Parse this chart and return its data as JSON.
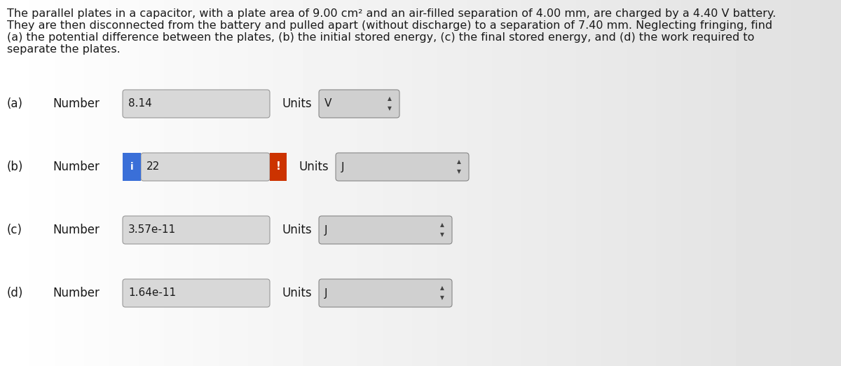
{
  "background_color": "#e8e8e8",
  "title_text_lines": [
    "The parallel plates in a capacitor, with a plate area of 9.00 cm² and an air-filled separation of 4.00 mm, are charged by a 4.40 V battery.",
    "They are then disconnected from the battery and pulled apart (without discharge) to a separation of 7.40 mm. Neglecting fringing, find",
    "(a) the potential difference between the plates, (b) the initial stored energy, (c) the final stored energy, and (d) the work required to",
    "separate the plates."
  ],
  "rows": [
    {
      "label": "(a)",
      "number_value": "8.14",
      "units_value": "V",
      "has_info": false,
      "has_error": false,
      "units_wide": false
    },
    {
      "label": "(b)",
      "number_value": "22",
      "units_value": "J",
      "has_info": true,
      "has_error": true,
      "units_wide": true
    },
    {
      "label": "(c)",
      "number_value": "3.57e-11",
      "units_value": "J",
      "has_info": false,
      "has_error": false,
      "units_wide": true
    },
    {
      "label": "(d)",
      "number_value": "1.64e-11",
      "units_value": "J",
      "has_info": false,
      "has_error": false,
      "units_wide": true
    }
  ],
  "text_color": "#1a1a1a",
  "box_fill_white": "#ffffff",
  "box_fill_gray": "#d8d8d8",
  "box_border": "#999999",
  "info_blue": "#3a6fd8",
  "error_red": "#cc3300",
  "units_box_fill": "#d0d0d0",
  "units_box_border": "#888888",
  "num_box_fill": "#d8d8d8"
}
